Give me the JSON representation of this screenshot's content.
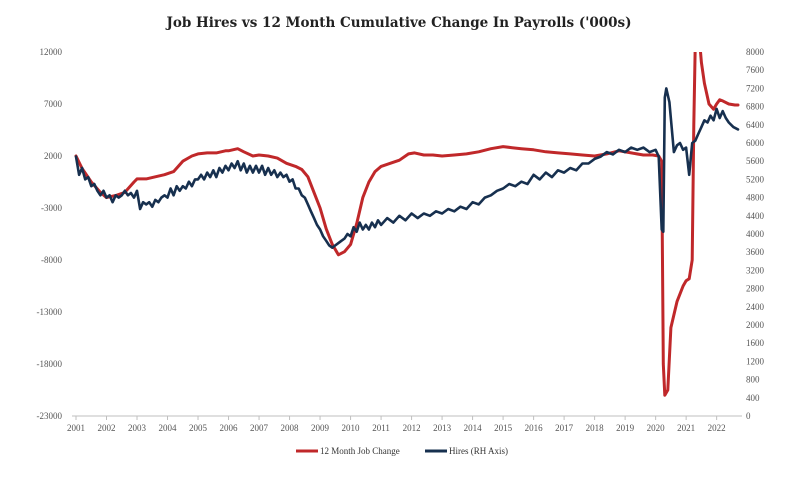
{
  "chart_data": {
    "type": "line",
    "title": "Job Hires vs 12 Month Cumulative Change In Payrolls ('000s)",
    "x_tick_labels": [
      "2001",
      "2002",
      "2003",
      "2004",
      "2005",
      "2006",
      "2007",
      "2008",
      "2009",
      "2010",
      "2011",
      "2012",
      "2013",
      "2014",
      "2015",
      "2016",
      "2017",
      "2018",
      "2019",
      "2020",
      "2021",
      "2022"
    ],
    "xlim": [
      2001,
      2022.7
    ],
    "y_left": {
      "lim": [
        -23000,
        12000
      ],
      "ticks": [
        12000,
        7000,
        2000,
        -3000,
        -8000,
        -13000,
        -18000,
        -23000
      ]
    },
    "y_right": {
      "lim": [
        0,
        8000
      ],
      "ticks": [
        8000,
        7600,
        7200,
        6800,
        6400,
        6000,
        5600,
        5200,
        4800,
        4400,
        4000,
        3600,
        3200,
        2800,
        2400,
        2000,
        1600,
        1200,
        800,
        400,
        0
      ]
    },
    "legend": {
      "position": "bottom-center",
      "items": [
        "12 Month Job Change",
        "Hires (RH Axis)"
      ]
    },
    "series": [
      {
        "name": "12 Month Job Change",
        "axis": "left",
        "color": "#c0282a",
        "points": [
          [
            2001.0,
            2000
          ],
          [
            2001.2,
            800
          ],
          [
            2001.5,
            -500
          ],
          [
            2001.8,
            -1500
          ],
          [
            2002.0,
            -2000
          ],
          [
            2002.3,
            -1800
          ],
          [
            2002.6,
            -1500
          ],
          [
            2002.9,
            -500
          ],
          [
            2003.0,
            -200
          ],
          [
            2003.3,
            -200
          ],
          [
            2003.6,
            0
          ],
          [
            2003.9,
            200
          ],
          [
            2004.2,
            500
          ],
          [
            2004.5,
            1500
          ],
          [
            2004.8,
            2000
          ],
          [
            2005.0,
            2200
          ],
          [
            2005.3,
            2300
          ],
          [
            2005.6,
            2300
          ],
          [
            2005.9,
            2500
          ],
          [
            2006.0,
            2500
          ],
          [
            2006.3,
            2700
          ],
          [
            2006.5,
            2400
          ],
          [
            2006.8,
            2000
          ],
          [
            2007.0,
            2100
          ],
          [
            2007.3,
            2000
          ],
          [
            2007.6,
            1800
          ],
          [
            2007.9,
            1300
          ],
          [
            2008.2,
            1000
          ],
          [
            2008.4,
            700
          ],
          [
            2008.6,
            0
          ],
          [
            2008.8,
            -1500
          ],
          [
            2009.0,
            -3000
          ],
          [
            2009.2,
            -5000
          ],
          [
            2009.4,
            -6500
          ],
          [
            2009.6,
            -7500
          ],
          [
            2009.8,
            -7200
          ],
          [
            2010.0,
            -6500
          ],
          [
            2010.2,
            -4500
          ],
          [
            2010.4,
            -2000
          ],
          [
            2010.6,
            -500
          ],
          [
            2010.8,
            500
          ],
          [
            2011.0,
            1000
          ],
          [
            2011.3,
            1300
          ],
          [
            2011.6,
            1600
          ],
          [
            2011.9,
            2200
          ],
          [
            2012.1,
            2300
          ],
          [
            2012.4,
            2100
          ],
          [
            2012.7,
            2100
          ],
          [
            2013.0,
            2000
          ],
          [
            2013.4,
            2100
          ],
          [
            2013.8,
            2200
          ],
          [
            2014.2,
            2400
          ],
          [
            2014.6,
            2700
          ],
          [
            2015.0,
            2900
          ],
          [
            2015.3,
            2800
          ],
          [
            2015.6,
            2700
          ],
          [
            2016.0,
            2600
          ],
          [
            2016.4,
            2400
          ],
          [
            2016.8,
            2300
          ],
          [
            2017.2,
            2200
          ],
          [
            2017.6,
            2100
          ],
          [
            2018.0,
            2000
          ],
          [
            2018.4,
            2200
          ],
          [
            2018.8,
            2500
          ],
          [
            2019.2,
            2300
          ],
          [
            2019.6,
            2100
          ],
          [
            2019.9,
            2100
          ],
          [
            2020.1,
            2000
          ],
          [
            2020.2,
            1500
          ],
          [
            2020.25,
            -18000
          ],
          [
            2020.3,
            -21000
          ],
          [
            2020.4,
            -20500
          ],
          [
            2020.5,
            -14500
          ],
          [
            2020.7,
            -12000
          ],
          [
            2020.9,
            -10500
          ],
          [
            2021.0,
            -10000
          ],
          [
            2021.1,
            -9800
          ],
          [
            2021.2,
            -8000
          ],
          [
            2021.25,
            5000
          ],
          [
            2021.3,
            13000
          ],
          [
            2021.4,
            14500
          ],
          [
            2021.5,
            11000
          ],
          [
            2021.6,
            9000
          ],
          [
            2021.75,
            7000
          ],
          [
            2021.9,
            6500
          ],
          [
            2022.0,
            7000
          ],
          [
            2022.1,
            7400
          ],
          [
            2022.2,
            7300
          ],
          [
            2022.4,
            7000
          ],
          [
            2022.6,
            6900
          ],
          [
            2022.7,
            6900
          ]
        ]
      },
      {
        "name": "Hires (RH Axis)",
        "axis": "right",
        "color": "#17304f",
        "points": [
          [
            2001.0,
            5700
          ],
          [
            2001.1,
            5300
          ],
          [
            2001.2,
            5450
          ],
          [
            2001.3,
            5200
          ],
          [
            2001.4,
            5250
          ],
          [
            2001.5,
            5050
          ],
          [
            2001.6,
            5100
          ],
          [
            2001.7,
            4950
          ],
          [
            2001.8,
            4850
          ],
          [
            2001.9,
            4950
          ],
          [
            2002.0,
            4800
          ],
          [
            2002.1,
            4850
          ],
          [
            2002.2,
            4700
          ],
          [
            2002.3,
            4850
          ],
          [
            2002.4,
            4800
          ],
          [
            2002.5,
            4850
          ],
          [
            2002.6,
            4950
          ],
          [
            2002.7,
            4850
          ],
          [
            2002.8,
            4900
          ],
          [
            2002.9,
            4800
          ],
          [
            2003.0,
            4950
          ],
          [
            2003.1,
            4550
          ],
          [
            2003.2,
            4700
          ],
          [
            2003.3,
            4650
          ],
          [
            2003.4,
            4700
          ],
          [
            2003.5,
            4600
          ],
          [
            2003.6,
            4750
          ],
          [
            2003.7,
            4700
          ],
          [
            2003.8,
            4800
          ],
          [
            2003.9,
            4850
          ],
          [
            2004.0,
            4800
          ],
          [
            2004.1,
            5000
          ],
          [
            2004.2,
            4850
          ],
          [
            2004.3,
            5050
          ],
          [
            2004.4,
            4950
          ],
          [
            2004.5,
            5050
          ],
          [
            2004.6,
            5000
          ],
          [
            2004.7,
            5150
          ],
          [
            2004.8,
            5050
          ],
          [
            2004.9,
            5200
          ],
          [
            2005.0,
            5200
          ],
          [
            2005.1,
            5300
          ],
          [
            2005.2,
            5200
          ],
          [
            2005.3,
            5350
          ],
          [
            2005.4,
            5250
          ],
          [
            2005.5,
            5400
          ],
          [
            2005.6,
            5250
          ],
          [
            2005.7,
            5450
          ],
          [
            2005.8,
            5350
          ],
          [
            2005.9,
            5500
          ],
          [
            2006.0,
            5400
          ],
          [
            2006.1,
            5550
          ],
          [
            2006.2,
            5450
          ],
          [
            2006.3,
            5600
          ],
          [
            2006.4,
            5400
          ],
          [
            2006.5,
            5550
          ],
          [
            2006.6,
            5350
          ],
          [
            2006.7,
            5500
          ],
          [
            2006.8,
            5350
          ],
          [
            2006.9,
            5500
          ],
          [
            2007.0,
            5350
          ],
          [
            2007.1,
            5500
          ],
          [
            2007.2,
            5300
          ],
          [
            2007.3,
            5450
          ],
          [
            2007.4,
            5300
          ],
          [
            2007.5,
            5400
          ],
          [
            2007.6,
            5250
          ],
          [
            2007.7,
            5350
          ],
          [
            2007.8,
            5250
          ],
          [
            2007.9,
            5300
          ],
          [
            2008.0,
            5150
          ],
          [
            2008.1,
            5200
          ],
          [
            2008.2,
            5000
          ],
          [
            2008.3,
            5000
          ],
          [
            2008.4,
            4850
          ],
          [
            2008.5,
            4800
          ],
          [
            2008.6,
            4650
          ],
          [
            2008.7,
            4500
          ],
          [
            2008.8,
            4350
          ],
          [
            2008.9,
            4200
          ],
          [
            2009.0,
            4100
          ],
          [
            2009.1,
            3950
          ],
          [
            2009.2,
            3850
          ],
          [
            2009.3,
            3750
          ],
          [
            2009.4,
            3700
          ],
          [
            2009.5,
            3750
          ],
          [
            2009.6,
            3800
          ],
          [
            2009.7,
            3850
          ],
          [
            2009.8,
            3900
          ],
          [
            2009.9,
            4000
          ],
          [
            2010.0,
            3950
          ],
          [
            2010.1,
            4150
          ],
          [
            2010.2,
            4050
          ],
          [
            2010.3,
            4250
          ],
          [
            2010.4,
            4100
          ],
          [
            2010.5,
            4200
          ],
          [
            2010.6,
            4100
          ],
          [
            2010.7,
            4250
          ],
          [
            2010.8,
            4150
          ],
          [
            2010.9,
            4300
          ],
          [
            2011.0,
            4200
          ],
          [
            2011.2,
            4350
          ],
          [
            2011.4,
            4250
          ],
          [
            2011.6,
            4400
          ],
          [
            2011.8,
            4300
          ],
          [
            2012.0,
            4450
          ],
          [
            2012.2,
            4350
          ],
          [
            2012.4,
            4450
          ],
          [
            2012.6,
            4400
          ],
          [
            2012.8,
            4500
          ],
          [
            2013.0,
            4450
          ],
          [
            2013.2,
            4550
          ],
          [
            2013.4,
            4500
          ],
          [
            2013.6,
            4600
          ],
          [
            2013.8,
            4550
          ],
          [
            2014.0,
            4700
          ],
          [
            2014.2,
            4650
          ],
          [
            2014.4,
            4800
          ],
          [
            2014.6,
            4850
          ],
          [
            2014.8,
            4950
          ],
          [
            2015.0,
            5000
          ],
          [
            2015.2,
            5100
          ],
          [
            2015.4,
            5050
          ],
          [
            2015.6,
            5150
          ],
          [
            2015.8,
            5100
          ],
          [
            2016.0,
            5300
          ],
          [
            2016.2,
            5200
          ],
          [
            2016.4,
            5350
          ],
          [
            2016.6,
            5250
          ],
          [
            2016.8,
            5400
          ],
          [
            2017.0,
            5350
          ],
          [
            2017.2,
            5450
          ],
          [
            2017.4,
            5400
          ],
          [
            2017.6,
            5550
          ],
          [
            2017.8,
            5550
          ],
          [
            2018.0,
            5650
          ],
          [
            2018.2,
            5700
          ],
          [
            2018.4,
            5800
          ],
          [
            2018.6,
            5750
          ],
          [
            2018.8,
            5850
          ],
          [
            2019.0,
            5800
          ],
          [
            2019.2,
            5900
          ],
          [
            2019.4,
            5850
          ],
          [
            2019.6,
            5900
          ],
          [
            2019.8,
            5800
          ],
          [
            2020.0,
            5850
          ],
          [
            2020.1,
            5700
          ],
          [
            2020.2,
            4100
          ],
          [
            2020.25,
            4050
          ],
          [
            2020.3,
            7000
          ],
          [
            2020.35,
            7200
          ],
          [
            2020.45,
            6900
          ],
          [
            2020.6,
            5800
          ],
          [
            2020.7,
            5950
          ],
          [
            2020.8,
            6000
          ],
          [
            2020.9,
            5850
          ],
          [
            2021.0,
            5900
          ],
          [
            2021.1,
            5300
          ],
          [
            2021.2,
            6000
          ],
          [
            2021.3,
            6050
          ],
          [
            2021.4,
            6200
          ],
          [
            2021.5,
            6350
          ],
          [
            2021.6,
            6500
          ],
          [
            2021.7,
            6450
          ],
          [
            2021.8,
            6600
          ],
          [
            2021.9,
            6500
          ],
          [
            2022.0,
            6750
          ],
          [
            2022.1,
            6550
          ],
          [
            2022.2,
            6700
          ],
          [
            2022.3,
            6550
          ],
          [
            2022.4,
            6450
          ],
          [
            2022.55,
            6350
          ],
          [
            2022.7,
            6300
          ]
        ]
      }
    ]
  }
}
